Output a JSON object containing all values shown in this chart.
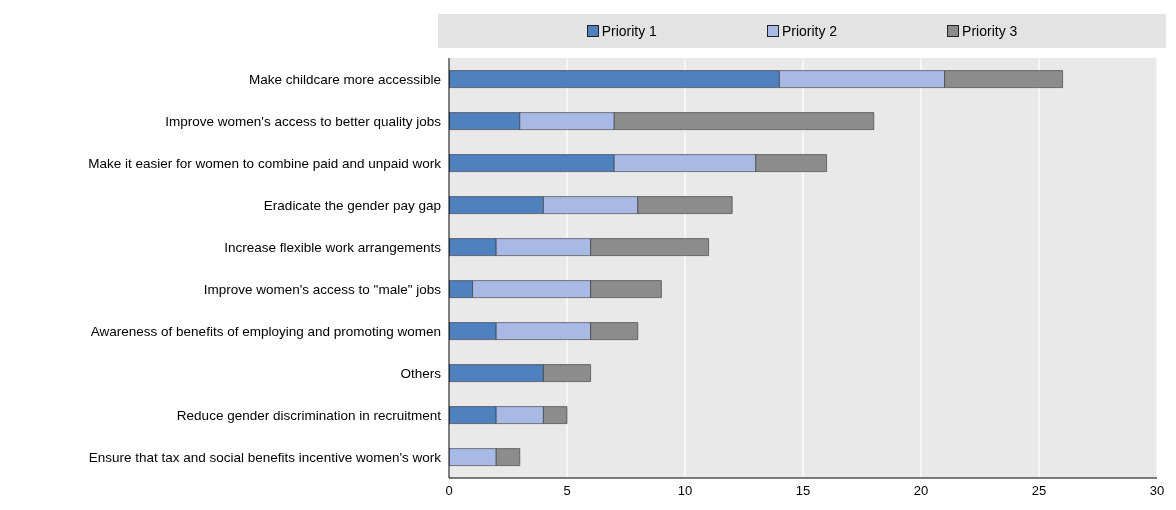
{
  "chart_data": {
    "type": "bar",
    "orientation": "horizontal",
    "stacked": true,
    "categories": [
      "Make childcare more accessible",
      "Improve women's access to better quality jobs",
      "Make it easier for women to combine paid and unpaid work",
      "Eradicate the gender pay gap",
      "Increase flexible work arrangements",
      "Improve women's access to \"male\" jobs",
      "Awareness of benefits of employing and promoting women",
      "Others",
      "Reduce gender discrimination in recruitment",
      "Ensure that tax and social benefits incentive women's work"
    ],
    "series": [
      {
        "name": "Priority 1",
        "color": "#4e81bd",
        "values": [
          14,
          3,
          7,
          4,
          2,
          1,
          2,
          4,
          2,
          0
        ]
      },
      {
        "name": "Priority 2",
        "color": "#a9b9e6",
        "values": [
          7,
          4,
          6,
          4,
          4,
          5,
          4,
          0,
          2,
          2
        ]
      },
      {
        "name": "Priority 3",
        "color": "#8c8c8c",
        "values": [
          5,
          11,
          3,
          4,
          5,
          3,
          2,
          2,
          1,
          1
        ]
      }
    ],
    "xlim": [
      0,
      30
    ],
    "xticks": [
      0,
      5,
      10,
      15,
      20,
      25,
      30
    ],
    "grid": "x",
    "legend": "top"
  }
}
